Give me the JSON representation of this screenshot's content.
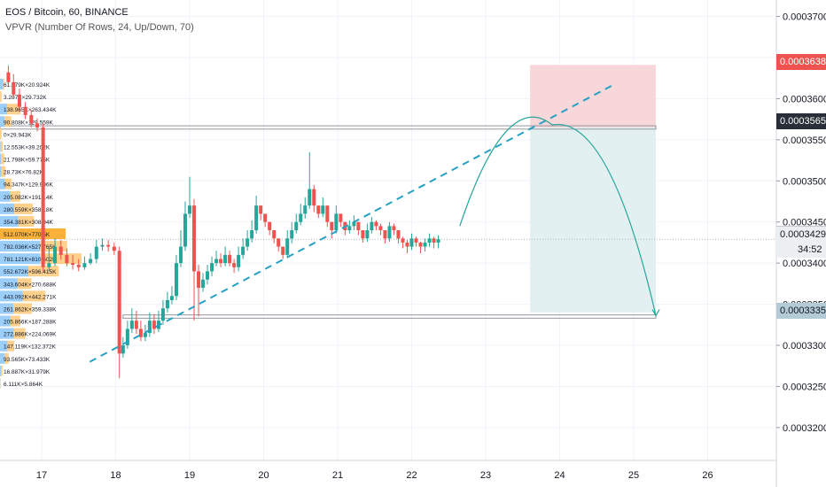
{
  "header": {
    "title": "EOS / Bitcoin, 60, BINANCE",
    "indicator": "VPVR (Number Of Rows, 24, Up/Down, 70)"
  },
  "colors": {
    "up": "#26a69a",
    "down": "#ef5350",
    "accent": "#2196f3",
    "vp_up": "#90caf9",
    "vp_down": "#ffcc80",
    "poc": "#f9a825",
    "stop_zone": "#f7d7d9",
    "target_zone": "#e3f0f1",
    "arc": "#26a69a"
  },
  "price_badges": {
    "stop": "0.0003638",
    "entry": "0.0003565",
    "last": "0.0003429",
    "countdown": "34:52",
    "target": "0.0003335"
  },
  "volume_profile": [
    {
      "label": "61.679K×20.924K",
      "up": 61.679,
      "down": 20.924
    },
    {
      "label": "3.207K×29.732K",
      "up": 3.207,
      "down": 29.732
    },
    {
      "label": "138.965K×263.434K",
      "up": 138.965,
      "down": 263.434
    },
    {
      "label": "90.808K×129.559K",
      "up": 90.808,
      "down": 129.559
    },
    {
      "label": "0×29.943K",
      "up": 0,
      "down": 29.943
    },
    {
      "label": "12.553K×39.202K",
      "up": 12.553,
      "down": 39.202
    },
    {
      "label": "21.798K×59.775K",
      "up": 21.798,
      "down": 59.775
    },
    {
      "label": "28.73K×76.82K",
      "up": 28.73,
      "down": 76.82
    },
    {
      "label": "94.347K×129.996K",
      "up": 94.347,
      "down": 129.996
    },
    {
      "label": "205.082K×191.14K",
      "up": 205.082,
      "down": 191.14
    },
    {
      "label": "280.559K×358.18K",
      "up": 280.559,
      "down": 358.18
    },
    {
      "label": "354.381K×308.94K",
      "up": 354.381,
      "down": 308.94
    },
    {
      "label": "512.070K×770.5K",
      "up": 512.07,
      "down": 770.5
    },
    {
      "label": "782.036K×527.765K",
      "up": 782.036,
      "down": 527.765
    },
    {
      "label": "781.121K×810.502K",
      "up": 781.121,
      "down": 810.502
    },
    {
      "label": "552.672K×596.415K",
      "up": 552.672,
      "down": 596.415
    },
    {
      "label": "343.604K×270.688K",
      "up": 343.604,
      "down": 270.688
    },
    {
      "label": "443.092K×442.271K",
      "up": 443.092,
      "down": 442.271
    },
    {
      "label": "261.862K×359.338K",
      "up": 261.862,
      "down": 359.338
    },
    {
      "label": "205.866K×187.288K",
      "up": 205.866,
      "down": 187.288
    },
    {
      "label": "272.886K×224.069K",
      "up": 272.886,
      "down": 224.069
    },
    {
      "label": "147.119K×132.372K",
      "up": 147.119,
      "down": 132.372
    },
    {
      "label": "93.565K×73.433K",
      "up": 93.565,
      "down": 73.433
    },
    {
      "label": "16.887K×31.979K",
      "up": 16.887,
      "down": 31.979
    },
    {
      "label": "6.111K×5.864K",
      "up": 6.111,
      "down": 5.864
    }
  ],
  "chart_data": {
    "type": "line",
    "title": "EOS / Bitcoin, 60, BINANCE",
    "xlabel": "",
    "ylabel": "",
    "x_ticks": [
      "17",
      "18",
      "19",
      "20",
      "21",
      "22",
      "23",
      "24",
      "25",
      "26"
    ],
    "y_ticks": [
      "0.0003200",
      "0.0003250",
      "0.0003300",
      "0.0003350",
      "0.0003400",
      "0.0003450",
      "0.0003500",
      "0.0003550",
      "0.0003600",
      "0.0003650",
      "0.0003700"
    ],
    "ylim": [
      0.000316,
      0.000372
    ],
    "xlim": [
      16.55,
      27.0
    ],
    "grid": true,
    "series": [
      {
        "type": "candlestick",
        "x": [
          16.55,
          16.62,
          16.7,
          16.78,
          16.86,
          16.94,
          17.02,
          17.1,
          17.18,
          17.26,
          17.34,
          17.42,
          17.5,
          17.58,
          17.66,
          17.74,
          17.82,
          17.9,
          17.98,
          18.05,
          18.1,
          18.16,
          18.22,
          18.28,
          18.34,
          18.4,
          18.46,
          18.52,
          18.58,
          18.64,
          18.7,
          18.76,
          18.82,
          18.88,
          18.94,
          19.0,
          19.06,
          19.12,
          19.18,
          19.24,
          19.3,
          19.36,
          19.42,
          19.48,
          19.54,
          19.6,
          19.66,
          19.72,
          19.78,
          19.84,
          19.9,
          19.96,
          20.02,
          20.08,
          20.14,
          20.2,
          20.26,
          20.32,
          20.38,
          20.44,
          20.5,
          20.56,
          20.62,
          20.68,
          20.74,
          20.8,
          20.86,
          20.92,
          20.98,
          21.04,
          21.1,
          21.16,
          21.22,
          21.28,
          21.34,
          21.4,
          21.46,
          21.52,
          21.58,
          21.64,
          21.7,
          21.76,
          21.82,
          21.88,
          21.94,
          22.0,
          22.06,
          22.12,
          22.18,
          22.24,
          22.3,
          22.36
        ],
        "open": [
          0.0003632,
          0.000362,
          0.0003605,
          0.000359,
          0.000358,
          0.000357,
          0.0003565,
          0.0003395,
          0.00034,
          0.000342,
          0.000341,
          0.00034,
          0.0003398,
          0.0003395,
          0.00034,
          0.0003405,
          0.000342,
          0.0003422,
          0.000342,
          0.0003415,
          0.000329,
          0.00033,
          0.000332,
          0.000333,
          0.000332,
          0.000331,
          0.0003315,
          0.000333,
          0.000332,
          0.000333,
          0.0003345,
          0.0003355,
          0.000336,
          0.00034,
          0.000342,
          0.000346,
          0.000347,
          0.000339,
          0.000337,
          0.000338,
          0.000339,
          0.00034,
          0.0003405,
          0.00034,
          0.000341,
          0.00034,
          0.0003395,
          0.000341,
          0.000342,
          0.000343,
          0.000344,
          0.000347,
          0.000346,
          0.000345,
          0.000344,
          0.000343,
          0.000342,
          0.000341,
          0.000343,
          0.000344,
          0.000345,
          0.000346,
          0.000347,
          0.000349,
          0.000347,
          0.000346,
          0.000347,
          0.000345,
          0.000344,
          0.000346,
          0.000345,
          0.000344,
          0.0003445,
          0.000345,
          0.000344,
          0.000343,
          0.000344,
          0.000345,
          0.0003445,
          0.000344,
          0.000343,
          0.0003445,
          0.000344,
          0.000343,
          0.0003425,
          0.000342,
          0.000343,
          0.0003425,
          0.000342,
          0.0003425,
          0.000343,
          0.0003425
        ],
        "close": [
          0.000362,
          0.0003605,
          0.000359,
          0.000358,
          0.000357,
          0.0003565,
          0.0003395,
          0.00034,
          0.000342,
          0.000341,
          0.00034,
          0.0003398,
          0.0003395,
          0.00034,
          0.0003405,
          0.000342,
          0.0003422,
          0.000342,
          0.0003415,
          0.000329,
          0.00033,
          0.000332,
          0.000333,
          0.000332,
          0.000331,
          0.0003315,
          0.000333,
          0.000332,
          0.000333,
          0.0003345,
          0.0003355,
          0.000336,
          0.00034,
          0.000342,
          0.000346,
          0.000347,
          0.000339,
          0.000337,
          0.000338,
          0.000339,
          0.00034,
          0.0003405,
          0.00034,
          0.000341,
          0.00034,
          0.0003395,
          0.000341,
          0.000342,
          0.000343,
          0.000344,
          0.000347,
          0.000346,
          0.000345,
          0.000344,
          0.000343,
          0.000342,
          0.000341,
          0.000343,
          0.000344,
          0.000345,
          0.000346,
          0.000347,
          0.000349,
          0.000347,
          0.000346,
          0.000347,
          0.000345,
          0.000344,
          0.000346,
          0.000345,
          0.000344,
          0.0003445,
          0.000345,
          0.000344,
          0.000343,
          0.000344,
          0.000345,
          0.0003445,
          0.000344,
          0.000343,
          0.0003445,
          0.000344,
          0.000343,
          0.0003425,
          0.000342,
          0.000343,
          0.0003425,
          0.000342,
          0.0003425,
          0.000343,
          0.0003425,
          0.0003429
        ],
        "high": [
          0.000364,
          0.000363,
          0.0003612,
          0.0003596,
          0.0003586,
          0.0003576,
          0.000357,
          0.000342,
          0.000343,
          0.0003428,
          0.0003418,
          0.000341,
          0.0003405,
          0.0003408,
          0.0003412,
          0.0003428,
          0.000343,
          0.0003428,
          0.0003425,
          0.000342,
          0.000331,
          0.000333,
          0.0003345,
          0.0003342,
          0.000333,
          0.0003325,
          0.000334,
          0.0003338,
          0.0003342,
          0.0003355,
          0.0003365,
          0.0003372,
          0.000341,
          0.000344,
          0.0003475,
          0.0003505,
          0.0003478,
          0.0003398,
          0.0003388,
          0.0003398,
          0.0003408,
          0.0003415,
          0.0003412,
          0.000342,
          0.0003415,
          0.0003405,
          0.000342,
          0.000343,
          0.000344,
          0.0003452,
          0.0003482,
          0.000347,
          0.000346,
          0.000345,
          0.000344,
          0.000343,
          0.000342,
          0.000344,
          0.000345,
          0.000346,
          0.0003472,
          0.000348,
          0.0003535,
          0.0003495,
          0.000347,
          0.000348,
          0.000347,
          0.000345,
          0.000347,
          0.000346,
          0.000345,
          0.0003452,
          0.0003458,
          0.000345,
          0.000344,
          0.0003448,
          0.0003456,
          0.0003452,
          0.0003448,
          0.000344,
          0.000345,
          0.0003448,
          0.000344,
          0.0003432,
          0.0003428,
          0.0003436,
          0.0003432,
          0.0003426,
          0.000343,
          0.0003436,
          0.0003432,
          0.0003434
        ],
        "low": [
          0.0003615,
          0.00036,
          0.0003585,
          0.0003575,
          0.0003565,
          0.000356,
          0.000339,
          0.000339,
          0.0003396,
          0.0003404,
          0.0003396,
          0.0003392,
          0.000339,
          0.0003392,
          0.0003398,
          0.00034,
          0.0003415,
          0.0003414,
          0.000341,
          0.000326,
          0.0003285,
          0.0003296,
          0.0003315,
          0.0003314,
          0.0003305,
          0.0003305,
          0.000331,
          0.0003314,
          0.0003316,
          0.0003325,
          0.000334,
          0.000335,
          0.0003355,
          0.0003395,
          0.0003415,
          0.0003455,
          0.000333,
          0.0003335,
          0.0003365,
          0.0003374,
          0.0003384,
          0.0003396,
          0.0003395,
          0.0003396,
          0.0003396,
          0.0003388,
          0.000339,
          0.0003405,
          0.0003415,
          0.0003425,
          0.0003436,
          0.0003452,
          0.0003444,
          0.0003434,
          0.0003424,
          0.0003414,
          0.0003405,
          0.0003406,
          0.0003424,
          0.0003436,
          0.0003446,
          0.0003454,
          0.0003466,
          0.0003462,
          0.0003455,
          0.0003456,
          0.0003444,
          0.000343,
          0.0003436,
          0.0003444,
          0.0003434,
          0.0003436,
          0.000344,
          0.0003434,
          0.0003425,
          0.0003426,
          0.0003436,
          0.000344,
          0.0003434,
          0.0003424,
          0.0003426,
          0.0003434,
          0.0003424,
          0.0003418,
          0.0003412,
          0.0003416,
          0.000342,
          0.0003412,
          0.0003414,
          0.000342,
          0.0003418,
          0.0003418
        ]
      }
    ],
    "drawings": {
      "resistance_band": [
        0.0003563,
        0.0003567
      ],
      "support_band": [
        0.0003333,
        0.0003337
      ],
      "trendline": {
        "x": [
          17.65,
          24.75
        ],
        "y": [
          0.000328,
          0.0003618
        ]
      },
      "stop_zone": {
        "x": [
          23.6,
          25.3
        ],
        "y": [
          0.0003565,
          0.0003641
        ]
      },
      "target_zone": {
        "x": [
          23.6,
          25.3
        ],
        "y": [
          0.000334,
          0.0003565
        ]
      },
      "arc": {
        "x": [
          22.65,
          23.9,
          25.3
        ],
        "y": [
          0.0003445,
          0.0003568,
          0.0003336
        ]
      }
    },
    "last_price": 0.0003429
  }
}
